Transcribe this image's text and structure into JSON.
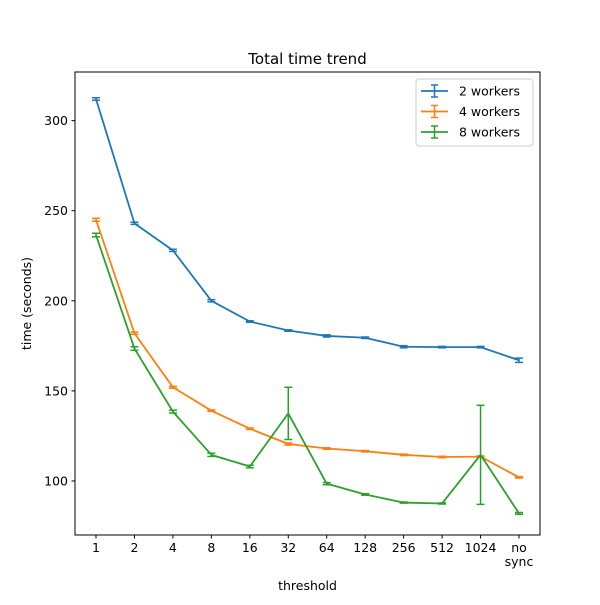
{
  "chart_data": {
    "type": "line",
    "title": "Total time trend",
    "xlabel": "threshold",
    "ylabel": "time (seconds)",
    "categories": [
      "1",
      "2",
      "4",
      "8",
      "16",
      "32",
      "64",
      "128",
      "256",
      "512",
      "1024",
      "no\nsync"
    ],
    "ylim": [
      70,
      327
    ],
    "yticks": [
      100,
      150,
      200,
      250,
      300
    ],
    "grid": false,
    "legend_position": "top-right",
    "error_bars": true,
    "series": [
      {
        "name": "2 workers",
        "color": "#1f77b4",
        "values": [
          312,
          243,
          228,
          200,
          188.5,
          183.5,
          180.5,
          179.5,
          174.5,
          174.3,
          174.3,
          167
        ],
        "errors": [
          0.7,
          0.6,
          0.6,
          0.6,
          0.4,
          0.4,
          0.6,
          0.4,
          0.6,
          0.4,
          0.4,
          1.2
        ]
      },
      {
        "name": "4 workers",
        "color": "#ff7f0e",
        "values": [
          245,
          182,
          152,
          139,
          129,
          120.5,
          118,
          116.5,
          114.5,
          113.3,
          113.5,
          102
        ],
        "errors": [
          0.8,
          0.6,
          0.5,
          0.4,
          0.4,
          0.6,
          0.4,
          0.4,
          0.4,
          0.4,
          0.4,
          0.4
        ]
      },
      {
        "name": "8 workers",
        "color": "#2ca02c",
        "values": [
          236.5,
          173.5,
          138.5,
          114.5,
          108,
          137.5,
          98.5,
          92.5,
          88,
          87.5,
          114.5,
          82
        ],
        "errors": [
          1.0,
          1.0,
          0.8,
          0.9,
          0.7,
          14.5,
          0.6,
          0.4,
          0.3,
          0.3,
          27.5,
          0.5
        ]
      }
    ]
  }
}
